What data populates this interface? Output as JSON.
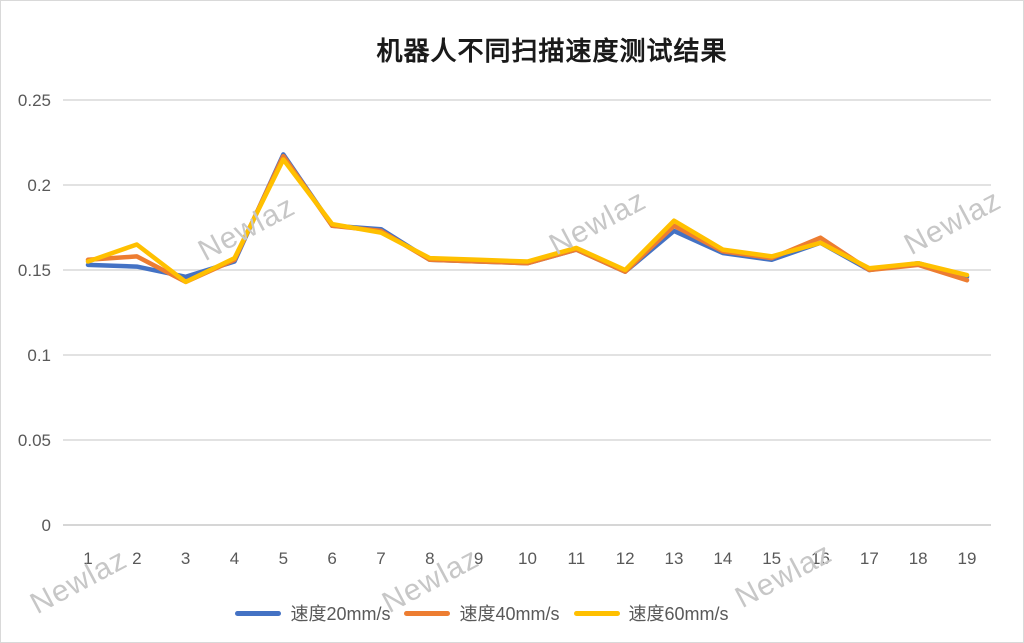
{
  "watermark": {
    "text": "Newlaz"
  },
  "chart_data": {
    "type": "line",
    "title": "机器人不同扫描速度测试结果",
    "categories": [
      1,
      2,
      3,
      4,
      5,
      6,
      7,
      8,
      9,
      10,
      11,
      12,
      13,
      14,
      15,
      16,
      17,
      18,
      19
    ],
    "series": [
      {
        "name": "速度20mm/s",
        "color": "#4472C4",
        "values": [
          0.153,
          0.152,
          0.146,
          0.155,
          0.218,
          0.176,
          0.174,
          0.156,
          0.155,
          0.154,
          0.162,
          0.149,
          0.173,
          0.16,
          0.156,
          0.166,
          0.15,
          0.154,
          0.146
        ]
      },
      {
        "name": "速度40mm/s",
        "color": "#ED7D31",
        "values": [
          0.156,
          0.158,
          0.143,
          0.156,
          0.217,
          0.176,
          0.173,
          0.156,
          0.155,
          0.154,
          0.162,
          0.149,
          0.176,
          0.161,
          0.157,
          0.169,
          0.15,
          0.153,
          0.144
        ]
      },
      {
        "name": "速度60mm/s",
        "color": "#FFC000",
        "values": [
          0.155,
          0.165,
          0.143,
          0.157,
          0.215,
          0.177,
          0.172,
          0.157,
          0.156,
          0.155,
          0.163,
          0.15,
          0.179,
          0.162,
          0.158,
          0.166,
          0.151,
          0.154,
          0.147
        ]
      }
    ],
    "y_ticks": [
      0,
      0.05,
      0.1,
      0.15,
      0.2,
      0.25
    ],
    "y_tick_labels": [
      "0",
      "0.05",
      "0.1",
      "0.15",
      "0.2",
      "0.25"
    ],
    "ylim": [
      0,
      0.25
    ],
    "grid": true,
    "legend_position": "bottom",
    "colors": {
      "gridline": "#D9D9D9",
      "axis_line": "#C9C9C9",
      "tick_label": "#595959",
      "title": "#1a1a1a",
      "watermark": "#c7c7c7"
    }
  }
}
